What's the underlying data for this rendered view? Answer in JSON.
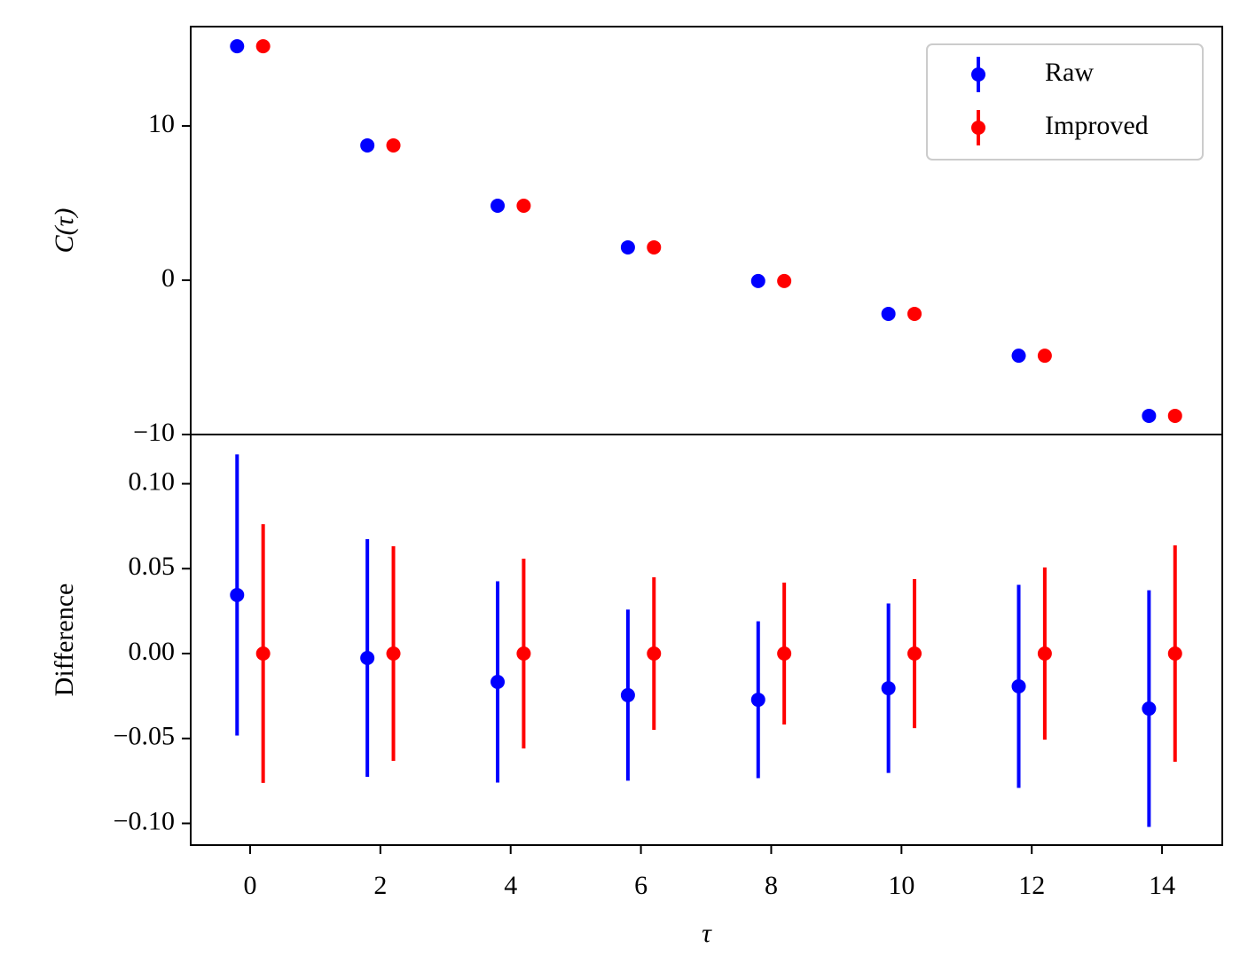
{
  "chart_data": [
    {
      "type": "errorbar",
      "ylabel": "C(τ)",
      "xlim": [
        -0.912,
        14.925
      ],
      "ylim": [
        -10,
        16.44
      ],
      "yticks": [
        {
          "value": -10,
          "label": "−10"
        },
        0,
        10
      ],
      "legend": "upper right",
      "series": [
        {
          "name": "Raw",
          "color": "#0000ff",
          "x": [
            -0.2,
            1.8,
            3.8,
            5.8,
            7.8,
            9.8,
            11.8,
            13.8
          ],
          "values": [
            15.17,
            8.74,
            4.83,
            2.13,
            -0.05,
            -2.18,
            -4.89,
            -8.79
          ]
        },
        {
          "name": "Improved",
          "color": "#ff0000",
          "x": [
            0.2,
            2.2,
            4.2,
            6.2,
            8.2,
            10.2,
            12.2,
            14.2
          ],
          "values": [
            15.17,
            8.74,
            4.83,
            2.13,
            -0.05,
            -2.18,
            -4.89,
            -8.79
          ]
        }
      ]
    },
    {
      "type": "errorbar",
      "ylabel": "Difference",
      "xlabel": "τ",
      "xlim": [
        -0.912,
        14.925
      ],
      "ylim": [
        -0.1128,
        0.129
      ],
      "xticks": [
        0,
        2,
        4,
        6,
        8,
        10,
        12,
        14
      ],
      "yticks": [
        {
          "value": -0.1,
          "label": "−0.10"
        },
        {
          "value": -0.05,
          "label": "−0.05"
        },
        {
          "value": 0,
          "label": "0.00"
        },
        {
          "value": 0.05,
          "label": "0.05"
        },
        {
          "value": 0.1,
          "label": "0.10"
        }
      ],
      "series": [
        {
          "color": "#0000ff",
          "x": [
            -0.2,
            1.8,
            3.8,
            5.8,
            7.8,
            9.8,
            11.8,
            13.8
          ],
          "values": [
            0.0345,
            -0.0026,
            -0.0167,
            -0.0245,
            -0.0272,
            -0.0204,
            -0.0193,
            -0.0324
          ],
          "errors": [
            0.0828,
            0.07,
            0.0593,
            0.0504,
            0.0462,
            0.0499,
            0.0598,
            0.0697
          ]
        },
        {
          "color": "#ff0000",
          "x": [
            0.2,
            2.2,
            4.2,
            6.2,
            8.2,
            10.2,
            12.2,
            14.2
          ],
          "values": [
            0,
            0,
            0,
            0,
            0,
            0,
            0,
            0
          ],
          "errors": [
            0.0762,
            0.0632,
            0.0559,
            0.0449,
            0.0418,
            0.0439,
            0.0507,
            0.0637
          ]
        }
      ]
    }
  ]
}
